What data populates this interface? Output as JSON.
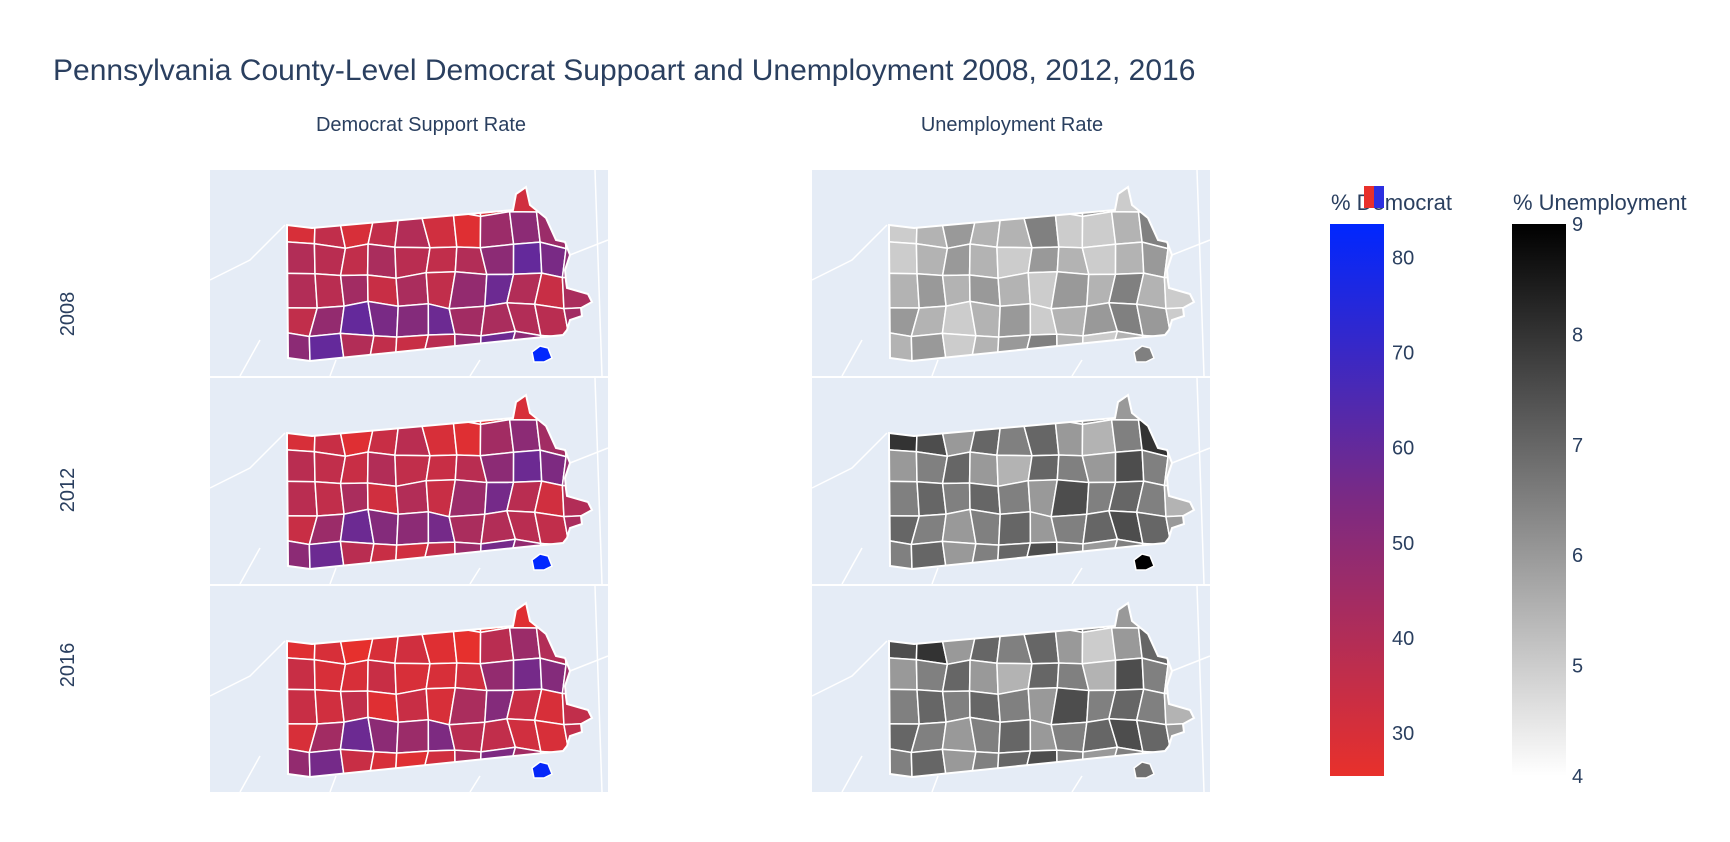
{
  "title": "Pennsylvania County-Level Democrat Suppoart and Unemployment 2008, 2012, 2016",
  "subplot_titles": [
    "Democrat Support Rate",
    "Unemployment Rate"
  ],
  "row_labels": [
    "2008",
    "2012",
    "2016"
  ],
  "colorbars": [
    {
      "title": "% Democrat",
      "ticks": [
        "30",
        "40",
        "50",
        "60",
        "70",
        "80"
      ],
      "min": 25.5,
      "max": 83.5,
      "colors": [
        "#e8302b",
        "#7b2a83",
        "#0027ff"
      ]
    },
    {
      "title": "% Unemployment",
      "ticks": [
        "4",
        "5",
        "6",
        "7",
        "8",
        "9"
      ],
      "min": 4,
      "max": 9,
      "colors": [
        "#ffffff",
        "#000000"
      ]
    }
  ],
  "colors": {
    "land": "#e5ecf6",
    "border": "#ffffff",
    "philadelphia": "#0027ff"
  },
  "chart_data": [
    {
      "type": "choropleth",
      "title": "Democrat Support Rate",
      "colorbar": "% Democrat",
      "years": [
        "2008",
        "2012",
        "2016"
      ],
      "grid": "county choropleth of Pennsylvania",
      "philadelphia": [
        83,
        85,
        82
      ],
      "values_by_year": {
        "2008": [
          26,
          36,
          38,
          40,
          38,
          40,
          34,
          30,
          32,
          38,
          35,
          30,
          36,
          30,
          36,
          40,
          32,
          28,
          46,
          50,
          46,
          52,
          40,
          38,
          36,
          42,
          38,
          36,
          40,
          50,
          60,
          55,
          50,
          40,
          38,
          44,
          34,
          42,
          36,
          48,
          58,
          40,
          34,
          42,
          36,
          48,
          60,
          55,
          52,
          58,
          44,
          42,
          40,
          38,
          44,
          50,
          60,
          40,
          36,
          34,
          38,
          48,
          58,
          50,
          42,
          40
        ],
        "2012": [
          28,
          32,
          34,
          38,
          36,
          40,
          30,
          28,
          30,
          34,
          32,
          30,
          34,
          28,
          34,
          38,
          30,
          28,
          44,
          50,
          44,
          50,
          38,
          36,
          34,
          40,
          36,
          34,
          38,
          50,
          58,
          54,
          48,
          38,
          36,
          42,
          32,
          40,
          34,
          46,
          56,
          38,
          32,
          40,
          34,
          46,
          58,
          52,
          50,
          56,
          42,
          40,
          38,
          36,
          42,
          50,
          58,
          38,
          34,
          32,
          36,
          46,
          56,
          48,
          40,
          38
        ],
        "2016": [
          26,
          30,
          30,
          32,
          30,
          34,
          28,
          26,
          28,
          30,
          28,
          28,
          30,
          26,
          30,
          32,
          28,
          26,
          38,
          46,
          40,
          50,
          34,
          30,
          30,
          34,
          30,
          30,
          32,
          48,
          56,
          52,
          46,
          34,
          32,
          36,
          28,
          34,
          30,
          42,
          52,
          34,
          30,
          36,
          30,
          44,
          58,
          50,
          46,
          54,
          38,
          36,
          32,
          30,
          36,
          48,
          56,
          34,
          30,
          28,
          32,
          42,
          54,
          44,
          36,
          34
        ]
      }
    },
    {
      "type": "choropleth",
      "title": "Unemployment Rate",
      "colorbar": "% Unemployment",
      "years": [
        "2008",
        "2012",
        "2016"
      ],
      "grid": "county choropleth of Pennsylvania",
      "philadelphia": [
        6.5,
        10.0,
        6.8
      ],
      "values_by_year": {
        "2008": [
          4.5,
          5.5,
          6.0,
          7.0,
          5.5,
          6.5,
          5.5,
          6.0,
          5.0,
          5.5,
          6.0,
          5.0,
          5.5,
          6.0,
          5.5,
          5.5,
          6.5,
          5.0,
          5.0,
          5.5,
          6.5,
          8.5,
          5.0,
          5.5,
          6.0,
          5.5,
          5.0,
          6.0,
          5.5,
          5.0,
          5.5,
          6.0,
          4.5,
          5.5,
          6.0,
          5.5,
          6.0,
          5.5,
          5.0,
          6.0,
          5.5,
          6.5,
          5.5,
          5.0,
          6.0,
          5.5,
          5.0,
          5.5,
          6.0,
          5.0,
          5.5,
          6.0,
          6.5,
          6.0,
          5.0,
          5.5,
          6.0,
          5.0,
          5.5,
          6.0,
          6.5,
          5.5,
          5.0,
          5.5,
          6.0,
          5.5
        ],
        "2012": [
          5.5,
          6.5,
          6.0,
          7.0,
          6.5,
          7.5,
          6.0,
          6.5,
          6.0,
          5.5,
          6.5,
          8.0,
          7.5,
          6.0,
          7.0,
          6.5,
          7.0,
          6.0,
          5.5,
          6.5,
          8.0,
          7.5,
          6.0,
          6.5,
          7.0,
          6.0,
          5.5,
          7.0,
          6.5,
          6.0,
          7.5,
          6.5,
          5.0,
          6.5,
          7.0,
          6.5,
          7.0,
          6.5,
          6.0,
          7.5,
          6.5,
          7.0,
          6.5,
          5.5,
          7.0,
          6.5,
          6.0,
          6.5,
          7.0,
          6.0,
          6.5,
          7.0,
          7.5,
          7.0,
          6.0,
          6.5,
          7.0,
          6.0,
          6.5,
          7.0,
          7.5,
          6.5,
          6.0,
          6.5,
          7.0,
          6.5
        ],
        "2016": [
          5.0,
          6.5,
          6.0,
          8.5,
          8.0,
          8.5,
          7.5,
          6.5,
          6.0,
          5.5,
          6.5,
          7.5,
          8.0,
          6.0,
          7.0,
          6.5,
          7.0,
          6.0,
          5.0,
          6.0,
          7.0,
          8.0,
          6.0,
          6.5,
          7.0,
          6.0,
          5.5,
          7.0,
          6.5,
          5.5,
          7.5,
          6.5,
          4.5,
          6.5,
          7.0,
          6.5,
          7.0,
          6.5,
          6.0,
          7.5,
          6.5,
          7.0,
          6.5,
          5.5,
          7.0,
          6.5,
          6.0,
          6.5,
          7.0,
          6.0,
          6.5,
          7.0,
          7.5,
          7.0,
          6.0,
          6.5,
          7.0,
          6.0,
          6.5,
          7.0,
          7.5,
          6.5,
          6.0,
          6.5,
          7.0,
          6.5
        ]
      }
    }
  ]
}
